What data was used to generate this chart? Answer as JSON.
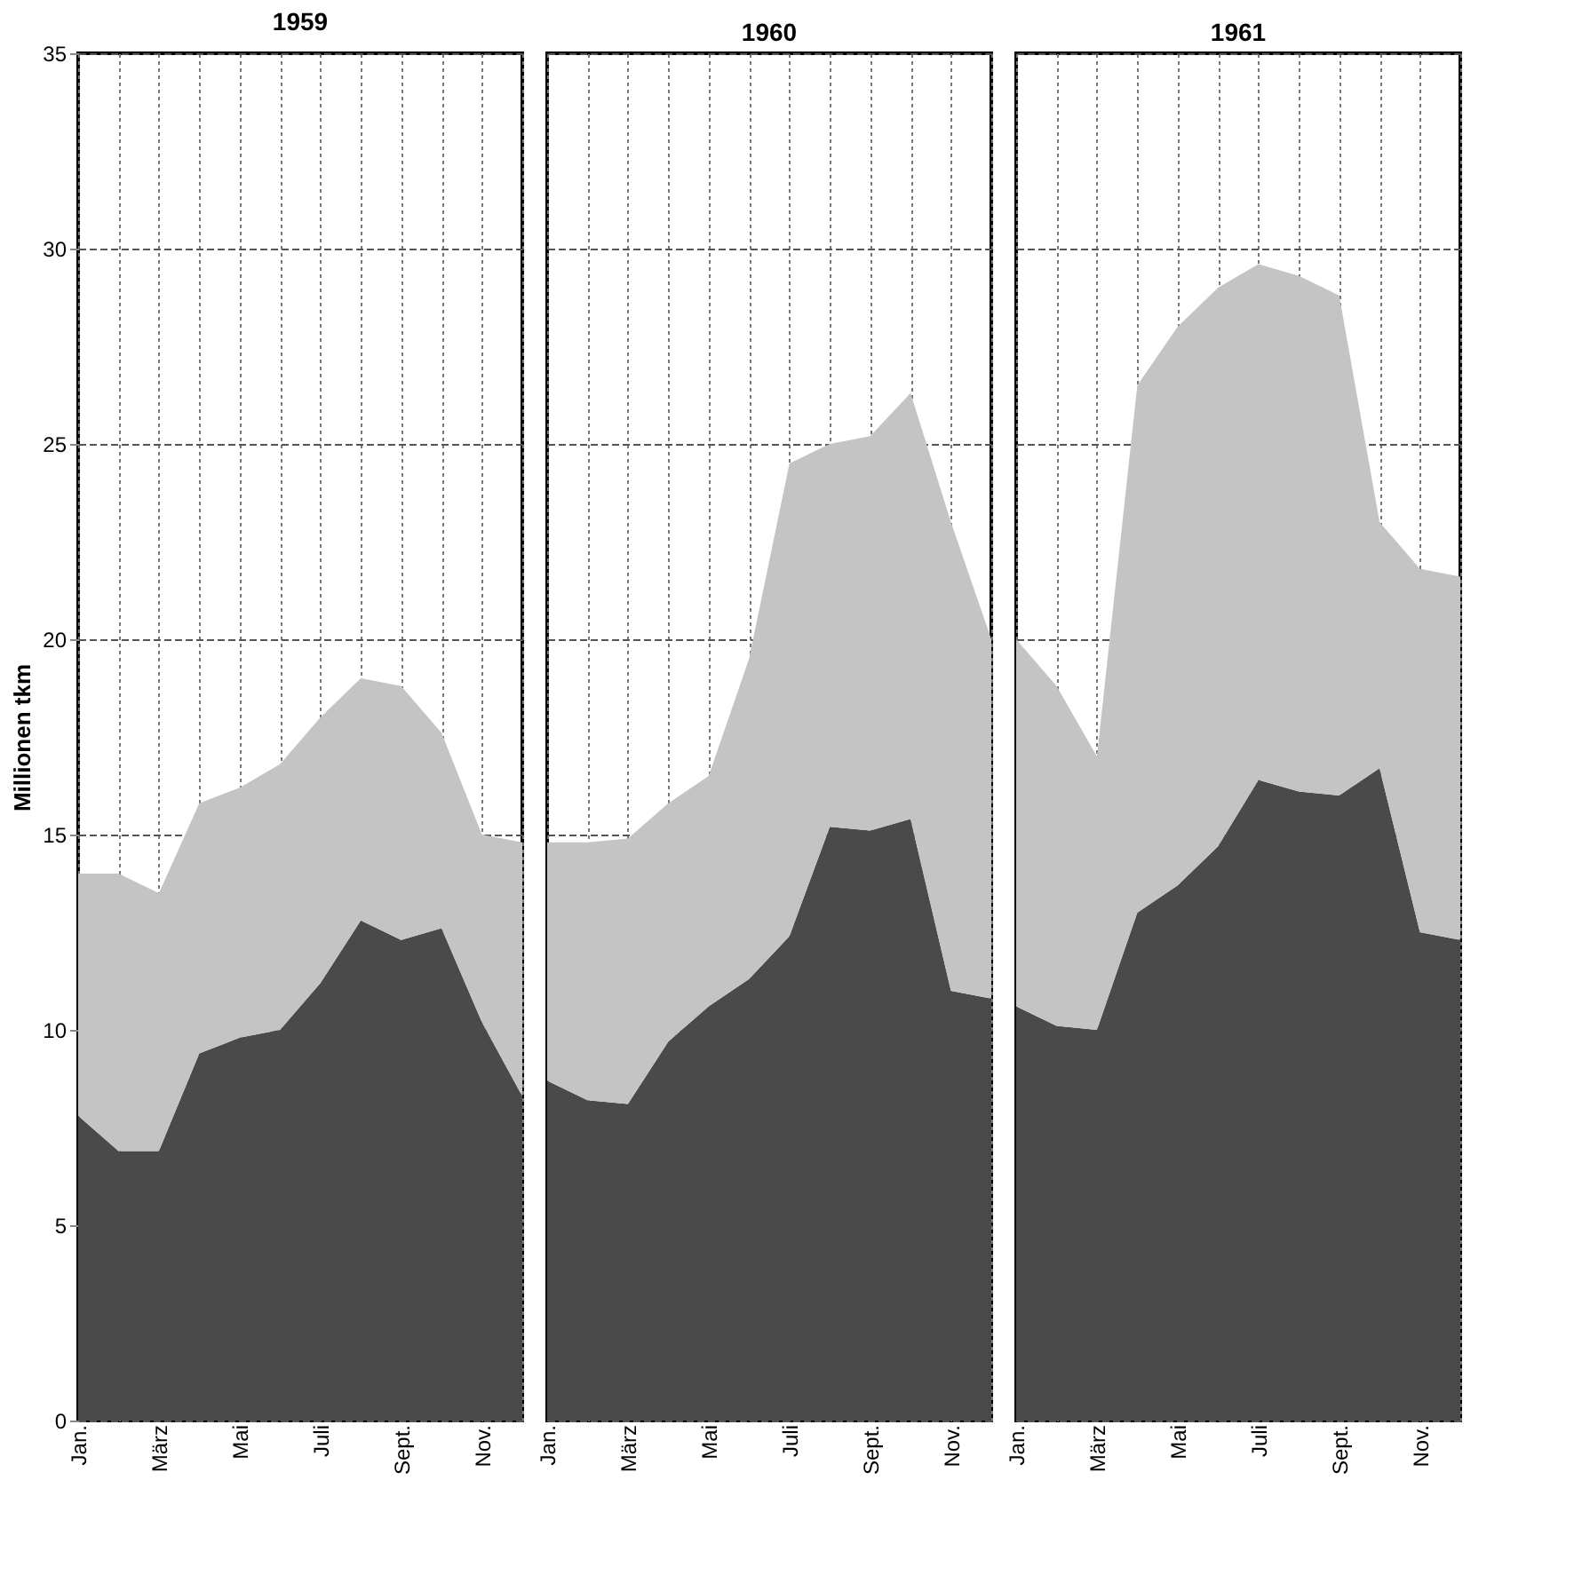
{
  "chart_data": [
    {
      "type": "area",
      "title": "1959",
      "ylabel": "Millionen tkm",
      "stacked": true,
      "grid": true,
      "categories": [
        "Jan.",
        null,
        "März",
        null,
        "Mai",
        null,
        "Juli",
        null,
        "Sept.",
        null,
        "Nov.",
        null
      ],
      "ylim": [
        0,
        35
      ],
      "yticks": [
        0,
        5,
        10,
        15,
        20,
        25,
        30,
        35
      ],
      "series": [
        {
          "color": "#4a4a4a",
          "values": [
            7.8,
            6.9,
            6.9,
            9.4,
            9.8,
            10.0,
            11.2,
            12.8,
            12.3,
            12.6,
            10.2,
            8.3
          ]
        },
        {
          "color": "#c4c4c4",
          "values": [
            6.2,
            7.1,
            6.6,
            6.4,
            6.4,
            6.8,
            6.8,
            6.2,
            6.5,
            5.0,
            4.8,
            6.5
          ]
        }
      ]
    },
    {
      "type": "area",
      "title": "1960",
      "stacked": true,
      "grid": true,
      "tick_labels": "x",
      "categories": [
        "Jan.",
        null,
        "März",
        null,
        "Mai",
        null,
        "Juli",
        null,
        "Sept.",
        null,
        "Nov.",
        null
      ],
      "ylim": [
        0,
        35
      ],
      "yticks": [
        0,
        5,
        10,
        15,
        20,
        25,
        30,
        35
      ],
      "series": [
        {
          "color": "#4a4a4a",
          "values": [
            8.7,
            8.2,
            8.1,
            9.7,
            10.6,
            11.3,
            12.4,
            15.2,
            15.1,
            15.4,
            11.0,
            10.8
          ]
        },
        {
          "color": "#c4c4c4",
          "values": [
            6.1,
            6.6,
            6.8,
            6.1,
            5.9,
            8.2,
            12.1,
            9.8,
            10.1,
            10.9,
            12.0,
            9.2
          ]
        }
      ]
    },
    {
      "type": "area",
      "title": "1961",
      "stacked": true,
      "grid": true,
      "tick_labels": "x",
      "categories": [
        "Jan.",
        null,
        "März",
        null,
        "Mai",
        null,
        "Juli",
        null,
        "Sept.",
        null,
        "Nov.",
        null
      ],
      "ylim": [
        0,
        35
      ],
      "yticks": [
        0,
        5,
        10,
        15,
        20,
        25,
        30,
        35
      ],
      "series": [
        {
          "color": "#4a4a4a",
          "values": [
            10.6,
            10.1,
            10.0,
            13.0,
            13.7,
            14.7,
            16.4,
            16.1,
            16.0,
            16.7,
            12.5,
            12.3
          ]
        },
        {
          "color": "#c4c4c4",
          "values": [
            9.4,
            8.7,
            7.0,
            13.5,
            14.3,
            14.3,
            13.2,
            13.2,
            12.8,
            6.3,
            9.3,
            9.3
          ]
        }
      ]
    }
  ]
}
